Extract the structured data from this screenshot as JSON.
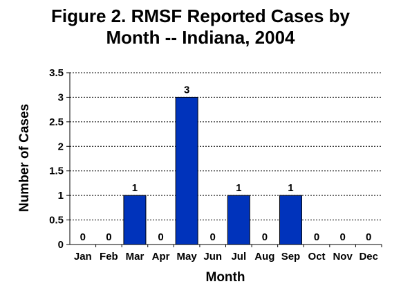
{
  "chart_data": {
    "type": "bar",
    "title_line1": "Figure 2. RMSF Reported Cases by",
    "title_line2": "Month -- Indiana, 2004",
    "xlabel": "Month",
    "ylabel": "Number of Cases",
    "categories": [
      "Jan",
      "Feb",
      "Mar",
      "Apr",
      "May",
      "Jun",
      "Jul",
      "Aug",
      "Sep",
      "Oct",
      "Nov",
      "Dec"
    ],
    "values": [
      0,
      0,
      1,
      0,
      3,
      0,
      1,
      0,
      1,
      0,
      0,
      0
    ],
    "ylim": [
      0,
      3.5
    ],
    "yticks": [
      "0",
      "0.5",
      "1",
      "1.5",
      "2",
      "2.5",
      "3",
      "3.5"
    ],
    "grid": "horizontal-dashed",
    "data_labels": true,
    "legend": "none",
    "colors": {
      "bar": "#0033bb",
      "bar_stroke": "#000000",
      "grid": "#000000"
    }
  }
}
